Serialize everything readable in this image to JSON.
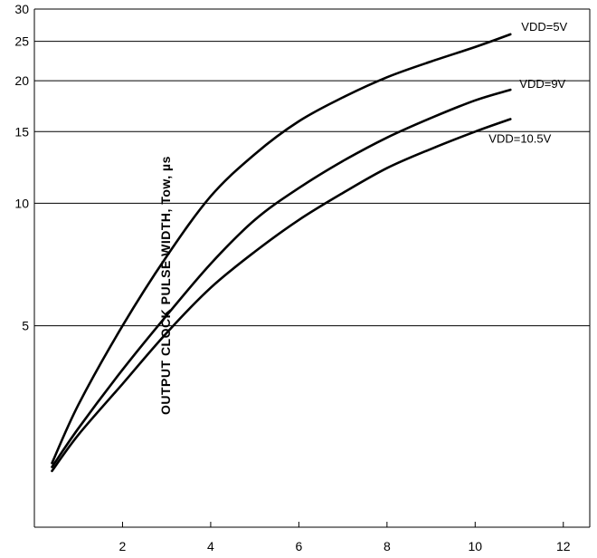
{
  "chart_data": {
    "type": "line",
    "title": "",
    "xlabel": "",
    "ylabel": "OUTPUT CLOCK PULSE WIDTH, Tow, µs",
    "y_scale": "log",
    "xlim": [
      0,
      12.6
    ],
    "ylim": [
      1.6,
      30
    ],
    "x_ticks": [
      2,
      4,
      6,
      8,
      10,
      12
    ],
    "y_ticks": [
      5,
      10,
      15,
      20,
      25,
      30
    ],
    "grid": "horizontal",
    "series": [
      {
        "name": "VDD=5V",
        "x": [
          0.4,
          1,
          2,
          3,
          4,
          5,
          6,
          7,
          8,
          9,
          10,
          10.8
        ],
        "y": [
          2.3,
          3.2,
          5.0,
          7.4,
          10.4,
          13.2,
          15.9,
          18.2,
          20.4,
          22.3,
          24.2,
          26.0
        ]
      },
      {
        "name": "VDD=9V",
        "x": [
          0.4,
          1,
          2,
          3,
          4,
          5,
          6,
          7,
          8,
          9,
          10,
          10.8
        ],
        "y": [
          2.25,
          2.8,
          3.9,
          5.3,
          7.1,
          9.1,
          10.9,
          12.7,
          14.5,
          16.2,
          17.9,
          19.0
        ]
      },
      {
        "name": "VDD=10.5V",
        "x": [
          0.4,
          1,
          2,
          3,
          4,
          5,
          6,
          7,
          8,
          9,
          10,
          10.8
        ],
        "y": [
          2.2,
          2.7,
          3.6,
          4.8,
          6.2,
          7.6,
          9.1,
          10.6,
          12.2,
          13.6,
          15.0,
          16.1
        ]
      }
    ]
  }
}
